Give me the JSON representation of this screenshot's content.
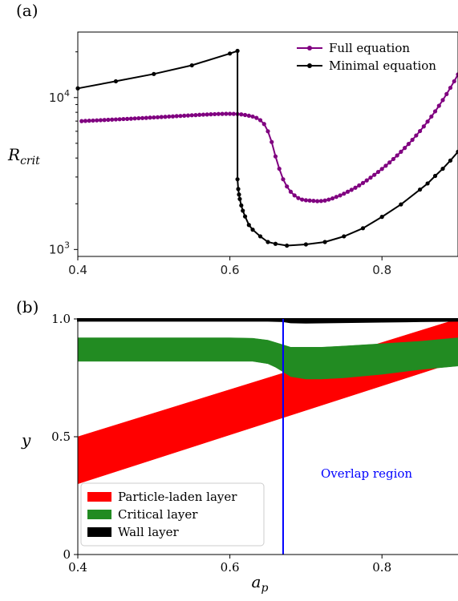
{
  "panels": {
    "a_label": "(a)",
    "b_label": "(b)"
  },
  "chart_data": [
    {
      "type": "line",
      "panel": "(a)",
      "ylabel": "R_crit",
      "ylabel_main": "R",
      "ylabel_sub": "crit",
      "xlabel": "",
      "xlim": [
        0.4,
        0.9
      ],
      "ylim": [
        900,
        27000
      ],
      "yscale": "log",
      "x_ticks": [
        "0.4",
        "0.6",
        "0.8"
      ],
      "y_ticks": [
        {
          "base": "10",
          "exp": "3",
          "value": 1000
        },
        {
          "base": "10",
          "exp": "4",
          "value": 10000
        }
      ],
      "legend_position": "top-right",
      "grid": false,
      "series": [
        {
          "name": "Full equation",
          "color": "#800080",
          "marker": "dot",
          "x": [
            0.405,
            0.41,
            0.415,
            0.42,
            0.425,
            0.43,
            0.435,
            0.44,
            0.445,
            0.45,
            0.455,
            0.46,
            0.465,
            0.47,
            0.475,
            0.48,
            0.485,
            0.49,
            0.495,
            0.5,
            0.505,
            0.51,
            0.515,
            0.52,
            0.525,
            0.53,
            0.535,
            0.54,
            0.545,
            0.55,
            0.555,
            0.56,
            0.565,
            0.57,
            0.575,
            0.58,
            0.585,
            0.59,
            0.595,
            0.6,
            0.605,
            0.61,
            0.615,
            0.62,
            0.625,
            0.63,
            0.635,
            0.64,
            0.645,
            0.65,
            0.655,
            0.66,
            0.665,
            0.67,
            0.675,
            0.68,
            0.685,
            0.69,
            0.695,
            0.7,
            0.705,
            0.71,
            0.715,
            0.72,
            0.725,
            0.73,
            0.735,
            0.74,
            0.745,
            0.75,
            0.755,
            0.76,
            0.765,
            0.77,
            0.775,
            0.78,
            0.785,
            0.79,
            0.795,
            0.8,
            0.805,
            0.81,
            0.815,
            0.82,
            0.825,
            0.83,
            0.835,
            0.84,
            0.845,
            0.85,
            0.855,
            0.86,
            0.865,
            0.87,
            0.875,
            0.88,
            0.885,
            0.89,
            0.895,
            0.9
          ],
          "y": [
            7000,
            7020,
            7040,
            7060,
            7080,
            7100,
            7120,
            7140,
            7160,
            7180,
            7200,
            7220,
            7240,
            7260,
            7290,
            7310,
            7330,
            7350,
            7380,
            7400,
            7420,
            7450,
            7470,
            7500,
            7520,
            7550,
            7570,
            7600,
            7620,
            7650,
            7670,
            7700,
            7720,
            7740,
            7760,
            7780,
            7800,
            7810,
            7820,
            7820,
            7810,
            7790,
            7750,
            7680,
            7600,
            7500,
            7350,
            7100,
            6700,
            6000,
            5100,
            4100,
            3400,
            2900,
            2600,
            2400,
            2270,
            2180,
            2130,
            2110,
            2100,
            2090,
            2080,
            2085,
            2100,
            2130,
            2170,
            2220,
            2270,
            2330,
            2400,
            2470,
            2550,
            2640,
            2740,
            2850,
            2970,
            3100,
            3240,
            3390,
            3560,
            3740,
            3940,
            4160,
            4400,
            4660,
            4950,
            5270,
            5630,
            6020,
            6460,
            6950,
            7500,
            8120,
            8830,
            9630,
            10550,
            11600,
            12800,
            14200
          ]
        },
        {
          "name": "Minimal equation",
          "color": "#000000",
          "marker": "dot",
          "x": [
            0.4,
            0.45,
            0.5,
            0.55,
            0.6,
            0.61,
            0.61,
            0.611,
            0.612,
            0.613,
            0.615,
            0.617,
            0.62,
            0.625,
            0.63,
            0.64,
            0.65,
            0.66,
            0.675,
            0.7,
            0.725,
            0.75,
            0.775,
            0.8,
            0.825,
            0.85,
            0.86,
            0.87,
            0.88,
            0.89,
            0.9
          ],
          "y": [
            11500,
            12800,
            14300,
            16300,
            19500,
            20300,
            2900,
            2500,
            2300,
            2150,
            1950,
            1800,
            1650,
            1450,
            1350,
            1220,
            1120,
            1090,
            1060,
            1080,
            1120,
            1220,
            1380,
            1640,
            1980,
            2480,
            2720,
            3050,
            3400,
            3850,
            4400
          ]
        }
      ]
    },
    {
      "type": "area",
      "panel": "(b)",
      "xlabel": "a_p",
      "xlabel_main": "a",
      "xlabel_sub": "p",
      "ylabel": "y",
      "xlim": [
        0.4,
        0.9
      ],
      "ylim": [
        0,
        1.0
      ],
      "x_ticks": [
        "0.4",
        "0.6",
        "0.8"
      ],
      "y_ticks": [
        "0",
        "0.5",
        "1.0"
      ],
      "legend_position": "bottom-left",
      "grid": false,
      "annotation": {
        "text": "Overlap region",
        "color": "#0000ff"
      },
      "vertical_line": {
        "x": 0.67,
        "color": "#0000ff"
      },
      "series": [
        {
          "name": "Particle-laden layer",
          "color": "#ff0000",
          "x": [
            0.4,
            0.9
          ],
          "lower": [
            0.3,
            0.82
          ],
          "upper": [
            0.5,
            1.0
          ]
        },
        {
          "name": "Critical layer",
          "color": "#228b22",
          "x": [
            0.4,
            0.45,
            0.5,
            0.55,
            0.6,
            0.63,
            0.65,
            0.66,
            0.67,
            0.68,
            0.7,
            0.72,
            0.75,
            0.8,
            0.85,
            0.9
          ],
          "lower": [
            0.82,
            0.82,
            0.82,
            0.82,
            0.82,
            0.82,
            0.81,
            0.795,
            0.775,
            0.755,
            0.745,
            0.745,
            0.75,
            0.765,
            0.785,
            0.8
          ],
          "upper": [
            0.92,
            0.92,
            0.92,
            0.92,
            0.92,
            0.918,
            0.91,
            0.9,
            0.89,
            0.88,
            0.88,
            0.88,
            0.885,
            0.895,
            0.905,
            0.92
          ]
        },
        {
          "name": "Wall layer",
          "color": "#000000",
          "x": [
            0.4,
            0.6,
            0.65,
            0.67,
            0.68,
            0.7,
            0.75,
            0.8,
            0.85,
            0.9
          ],
          "lower": [
            0.992,
            0.992,
            0.992,
            0.99,
            0.985,
            0.984,
            0.986,
            0.988,
            0.99,
            0.992
          ],
          "upper": [
            1.0,
            1.0,
            1.0,
            1.0,
            1.0,
            1.0,
            1.0,
            1.0,
            1.0,
            1.0
          ]
        }
      ]
    }
  ]
}
